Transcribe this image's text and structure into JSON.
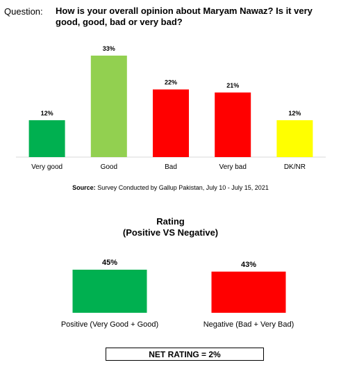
{
  "question": {
    "label": "Question:",
    "text": "How is your overall opinion about Maryam Nawaz? Is it very good, good, bad or very bad?"
  },
  "source": {
    "label": "Source:",
    "text": "Survey Conducted by Gallup Pakistan, July 10 - July 15, 2021"
  },
  "rating": {
    "title_line1": "Rating",
    "title_line2": "(Positive VS Negative)",
    "net": "NET RATING = 2%"
  },
  "chart_data": [
    {
      "type": "bar",
      "categories": [
        "Very good",
        "Good",
        "Bad",
        "Very bad",
        "DK/NR"
      ],
      "values": [
        12,
        33,
        22,
        21,
        12
      ],
      "data_labels": [
        "12%",
        "33%",
        "22%",
        "21%",
        "12%"
      ],
      "colors": [
        "#00b050",
        "#92d050",
        "#ff0000",
        "#ff0000",
        "#ffff00"
      ],
      "ylim": [
        0,
        33
      ],
      "grid": false,
      "legend": "none"
    },
    {
      "type": "bar",
      "categories": [
        "Positive (Very Good + Good)",
        "Negative (Bad + Very Bad)"
      ],
      "values": [
        45,
        43
      ],
      "data_labels": [
        "45%",
        "43%"
      ],
      "colors": [
        "#00b050",
        "#ff0000"
      ],
      "ylim": [
        0,
        45
      ],
      "grid": false,
      "legend": "none"
    }
  ]
}
